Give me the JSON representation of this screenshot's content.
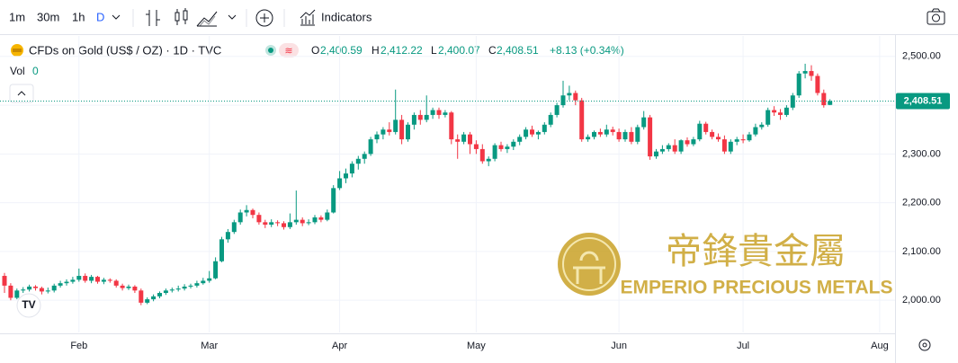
{
  "toolbar": {
    "intervals": [
      "1m",
      "30m",
      "1h",
      "D"
    ],
    "indicators": "Indicators"
  },
  "legend": {
    "symbol": "CFDs on Gold (US$ / OZ) · 1D · TVC",
    "o_label": "O",
    "o": "2,400.59",
    "h_label": "H",
    "h": "2,412.22",
    "l_label": "L",
    "l": "2,400.07",
    "c_label": "C",
    "c": "2,408.51",
    "change": "+8.13 (+0.34%)",
    "vol_label": "Vol",
    "vol": "0"
  },
  "watermark": {
    "chinese": "帝鋒貴金屬",
    "english": "EMPERIO PRECIOUS METALS"
  },
  "chart_data": {
    "type": "candlestick",
    "up_color": "#089981",
    "down_color": "#f23645",
    "categories": [
      null,
      null,
      null,
      null,
      null,
      null,
      null,
      null,
      null,
      null,
      null,
      null,
      "Feb",
      null,
      null,
      null,
      null,
      null,
      null,
      null,
      null,
      null,
      null,
      null,
      null,
      null,
      null,
      null,
      null,
      null,
      null,
      null,
      null,
      "Mar",
      null,
      null,
      null,
      null,
      null,
      null,
      null,
      null,
      null,
      null,
      null,
      null,
      null,
      null,
      null,
      null,
      null,
      null,
      null,
      null,
      "Apr",
      null,
      null,
      null,
      null,
      null,
      null,
      null,
      null,
      null,
      null,
      null,
      null,
      null,
      null,
      null,
      null,
      null,
      null,
      null,
      null,
      null,
      "May",
      null,
      null,
      null,
      null,
      null,
      null,
      null,
      null,
      null,
      null,
      null,
      null,
      null,
      null,
      null,
      null,
      null,
      null,
      null,
      null,
      null,
      null,
      "Jun",
      null,
      null,
      null,
      null,
      null,
      null,
      null,
      null,
      null,
      null,
      null,
      null,
      null,
      null,
      null,
      null,
      null,
      null,
      null,
      "Jul",
      null,
      null,
      null,
      null,
      null,
      null,
      null,
      null,
      null,
      null,
      null,
      null,
      null,
      null,
      null,
      null,
      null,
      null,
      null,
      null,
      null,
      "Aug"
    ],
    "open": [
      2050,
      2030,
      2005,
      2020,
      2022,
      2028,
      2025,
      2018,
      2020,
      2030,
      2035,
      2038,
      2042,
      2050,
      2040,
      2048,
      2038,
      2042,
      2040,
      2030,
      2025,
      2028,
      2020,
      1995,
      2002,
      2008,
      2015,
      2020,
      2022,
      2024,
      2028,
      2030,
      2035,
      2040,
      2045,
      2080,
      2125,
      2140,
      2160,
      2180,
      2185,
      2175,
      2160,
      2155,
      2160,
      2158,
      2150,
      2160,
      2165,
      2158,
      2160,
      2170,
      2165,
      2180,
      2230,
      2250,
      2260,
      2280,
      2290,
      2300,
      2330,
      2340,
      2350,
      2345,
      2370,
      2330,
      2360,
      2380,
      2370,
      2380,
      2390,
      2380,
      2385,
      2330,
      2325,
      2340,
      2320,
      2310,
      2285,
      2290,
      2318,
      2310,
      2315,
      2325,
      2335,
      2350,
      2340,
      2345,
      2360,
      2380,
      2400,
      2420,
      2425,
      2410,
      2330,
      2335,
      2345,
      2340,
      2350,
      2345,
      2330,
      2345,
      2325,
      2355,
      2375,
      2295,
      2305,
      2310,
      2318,
      2305,
      2328,
      2320,
      2330,
      2362,
      2345,
      2335,
      2330,
      2305,
      2325,
      2330,
      2328,
      2340,
      2355,
      2360,
      2390,
      2385,
      2380,
      2395,
      2420,
      2465,
      2470,
      2460,
      2425,
      2400.59,
      null,
      null,
      null,
      null,
      null,
      null,
      null,
      null
    ],
    "high": [
      2056,
      2035,
      2024,
      2027,
      2032,
      2031,
      2028,
      2026,
      2034,
      2040,
      2043,
      2048,
      2065,
      2055,
      2052,
      2050,
      2046,
      2045,
      2043,
      2034,
      2032,
      2031,
      2024,
      2006,
      2012,
      2018,
      2024,
      2026,
      2030,
      2033,
      2034,
      2040,
      2046,
      2060,
      2088,
      2130,
      2146,
      2165,
      2186,
      2195,
      2188,
      2180,
      2165,
      2166,
      2164,
      2162,
      2178,
      2225,
      2170,
      2166,
      2175,
      2174,
      2186,
      2236,
      2265,
      2270,
      2285,
      2296,
      2305,
      2335,
      2346,
      2355,
      2365,
      2432,
      2380,
      2365,
      2385,
      2390,
      2420,
      2395,
      2395,
      2390,
      2388,
      2340,
      2345,
      2345,
      2328,
      2320,
      2295,
      2322,
      2325,
      2320,
      2330,
      2340,
      2355,
      2358,
      2348,
      2365,
      2385,
      2405,
      2450,
      2440,
      2430,
      2415,
      2340,
      2348,
      2352,
      2360,
      2356,
      2352,
      2350,
      2355,
      2360,
      2388,
      2380,
      2310,
      2318,
      2322,
      2330,
      2330,
      2334,
      2335,
      2368,
      2366,
      2350,
      2342,
      2338,
      2330,
      2335,
      2340,
      2345,
      2362,
      2365,
      2395,
      2398,
      2392,
      2400,
      2425,
      2470,
      2485,
      2482,
      2465,
      2432,
      2412.22,
      null,
      null,
      null,
      null,
      null,
      null,
      null,
      null
    ],
    "low": [
      2015,
      2000,
      2002,
      2015,
      2018,
      2020,
      2012,
      2014,
      2016,
      2026,
      2030,
      2034,
      2038,
      2036,
      2035,
      2034,
      2033,
      2036,
      2026,
      2020,
      2021,
      2015,
      1990,
      1992,
      1998,
      2004,
      2011,
      2016,
      2018,
      2020,
      2024,
      2026,
      2032,
      2036,
      2043,
      2078,
      2118,
      2136,
      2155,
      2172,
      2168,
      2155,
      2148,
      2150,
      2152,
      2145,
      2146,
      2155,
      2152,
      2154,
      2156,
      2160,
      2162,
      2178,
      2226,
      2240,
      2252,
      2268,
      2280,
      2296,
      2322,
      2330,
      2338,
      2340,
      2320,
      2325,
      2350,
      2360,
      2365,
      2372,
      2372,
      2375,
      2320,
      2290,
      2320,
      2300,
      2300,
      2280,
      2275,
      2285,
      2305,
      2302,
      2308,
      2318,
      2330,
      2335,
      2330,
      2340,
      2355,
      2375,
      2395,
      2410,
      2400,
      2325,
      2325,
      2330,
      2335,
      2335,
      2338,
      2325,
      2325,
      2320,
      2320,
      2350,
      2288,
      2290,
      2300,
      2305,
      2300,
      2300,
      2315,
      2316,
      2326,
      2340,
      2330,
      2325,
      2300,
      2300,
      2318,
      2322,
      2325,
      2336,
      2350,
      2356,
      2378,
      2370,
      2376,
      2390,
      2415,
      2455,
      2450,
      2420,
      2395,
      2400.07,
      null,
      null,
      null,
      null,
      null,
      null,
      null,
      null
    ],
    "close": [
      2030,
      2005,
      2020,
      2022,
      2028,
      2025,
      2018,
      2020,
      2030,
      2035,
      2038,
      2042,
      2050,
      2040,
      2048,
      2038,
      2042,
      2040,
      2030,
      2025,
      2028,
      2020,
      1995,
      2002,
      2008,
      2015,
      2020,
      2022,
      2024,
      2028,
      2030,
      2035,
      2040,
      2045,
      2080,
      2125,
      2140,
      2160,
      2180,
      2185,
      2175,
      2160,
      2155,
      2160,
      2158,
      2150,
      2160,
      2165,
      2158,
      2160,
      2170,
      2165,
      2180,
      2230,
      2250,
      2260,
      2280,
      2290,
      2300,
      2330,
      2340,
      2350,
      2345,
      2370,
      2330,
      2360,
      2380,
      2370,
      2380,
      2390,
      2380,
      2385,
      2330,
      2325,
      2340,
      2320,
      2310,
      2285,
      2290,
      2318,
      2310,
      2315,
      2325,
      2335,
      2350,
      2340,
      2345,
      2360,
      2380,
      2400,
      2420,
      2425,
      2410,
      2330,
      2335,
      2345,
      2340,
      2350,
      2345,
      2330,
      2345,
      2325,
      2355,
      2375,
      2295,
      2305,
      2310,
      2318,
      2305,
      2328,
      2320,
      2330,
      2362,
      2345,
      2335,
      2330,
      2305,
      2325,
      2330,
      2328,
      2340,
      2355,
      2360,
      2390,
      2385,
      2380,
      2395,
      2420,
      2465,
      2470,
      2460,
      2425,
      2400,
      2408.51,
      null,
      null,
      null,
      null,
      null,
      null,
      null,
      null
    ],
    "ylim": [
      1934,
      2542
    ],
    "yticks": [
      {
        "value": 2000,
        "label": "2,000.00"
      },
      {
        "value": 2100,
        "label": "2,100.00"
      },
      {
        "value": 2200,
        "label": "2,200.00"
      },
      {
        "value": 2300,
        "label": "2,300.00"
      },
      {
        "value": 2400,
        "label": "2,400.00"
      },
      {
        "value": 2500,
        "label": "2,500.00"
      }
    ],
    "last_price_label": "2,408.51"
  }
}
